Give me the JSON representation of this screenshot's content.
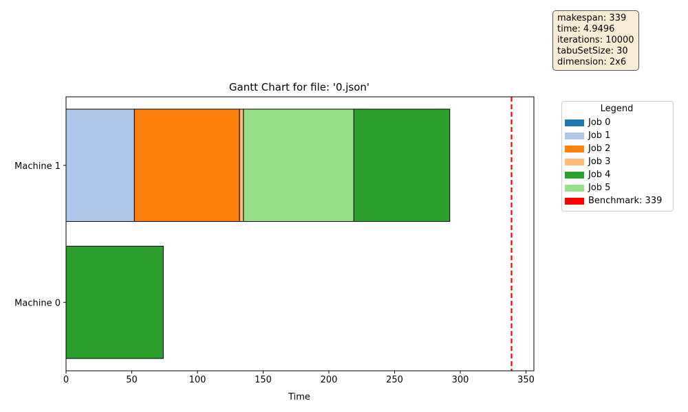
{
  "chart_data": {
    "type": "gantt",
    "title": "Gantt Chart for file: '0.json'",
    "xlabel": "Time",
    "xlim": [
      0,
      356
    ],
    "xticks": [
      0,
      50,
      100,
      150,
      200,
      250,
      300,
      350
    ],
    "machines": [
      "Machine 0",
      "Machine 1"
    ],
    "jobs": [
      {
        "name": "Job 0",
        "color": "#1f77b4"
      },
      {
        "name": "Job 1",
        "color": "#aec7e8"
      },
      {
        "name": "Job 2",
        "color": "#ff7f0e"
      },
      {
        "name": "Job 3",
        "color": "#ffbb78"
      },
      {
        "name": "Job 4",
        "color": "#2ca02c"
      },
      {
        "name": "Job 5",
        "color": "#98df8a"
      }
    ],
    "tasks": [
      {
        "machine": "Machine 1",
        "job": 1,
        "start": 0,
        "end": 52
      },
      {
        "machine": "Machine 1",
        "job": 2,
        "start": 52,
        "end": 132
      },
      {
        "machine": "Machine 1",
        "job": 3,
        "start": 132,
        "end": 135
      },
      {
        "machine": "Machine 1",
        "job": 5,
        "start": 135,
        "end": 219
      },
      {
        "machine": "Machine 1",
        "job": 4,
        "start": 219,
        "end": 292
      },
      {
        "machine": "Machine 0",
        "job": 4,
        "start": 0,
        "end": 74
      }
    ],
    "benchmark": {
      "value": 339,
      "label": "Benchmark: 339",
      "color": "#ff0000"
    },
    "legend_title": "Legend",
    "legend_position": "outside-right",
    "grid": false
  },
  "info_lines": [
    "makespan: 339",
    "time: 4.9496",
    "iterations: 10000",
    "tabuSetSize: 30",
    "dimension: 2x6"
  ]
}
